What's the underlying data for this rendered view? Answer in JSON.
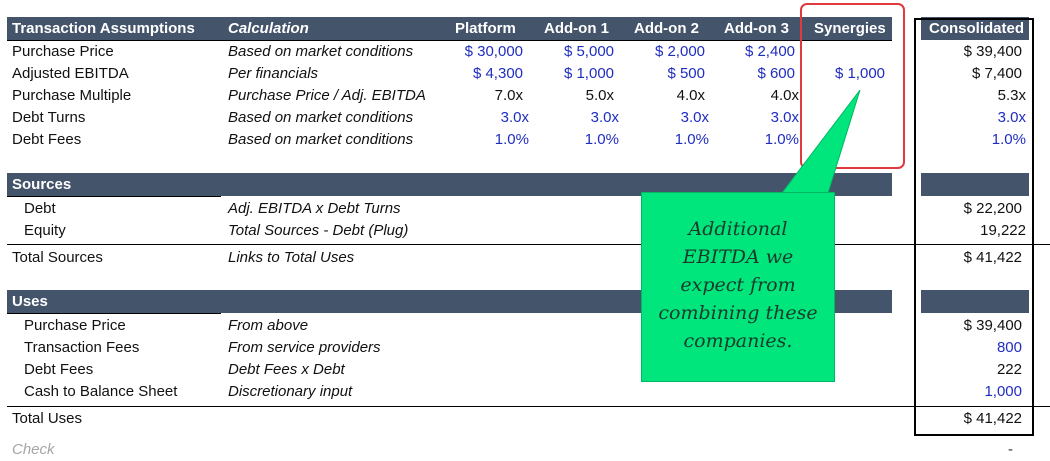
{
  "assumptions": {
    "header": {
      "section": "Transaction Assumptions",
      "calc": "Calculation",
      "platform": "Platform",
      "addon1": "Add-on 1",
      "addon2": "Add-on 2",
      "addon3": "Add-on 3",
      "synergies": "Synergies",
      "consolidated": "Consolidated"
    },
    "rows": [
      {
        "label": "Purchase Price",
        "calc": "Based on market conditions",
        "platform": "$ 30,000",
        "addon1": "$ 5,000",
        "addon2": "$ 2,000",
        "addon3": "$ 2,400",
        "synergies": "",
        "consolidated": "$ 39,400"
      },
      {
        "label": "Adjusted EBITDA",
        "calc": "Per financials",
        "platform": "$ 4,300",
        "addon1": "$ 1,000",
        "addon2": "$ 500",
        "addon3": "$ 600",
        "synergies": "$ 1,000",
        "consolidated": "$ 7,400"
      },
      {
        "label": "Purchase Multiple",
        "calc": "Purchase Price / Adj. EBITDA",
        "platform": "7.0x",
        "addon1": "5.0x",
        "addon2": "4.0x",
        "addon3": "4.0x",
        "synergies": "",
        "consolidated": "5.3x"
      },
      {
        "label": "Debt Turns",
        "calc": "Based on market conditions",
        "platform": "3.0x",
        "addon1": "3.0x",
        "addon2": "3.0x",
        "addon3": "3.0x",
        "synergies": "",
        "consolidated": "3.0x"
      },
      {
        "label": "Debt Fees",
        "calc": "Based on market conditions",
        "platform": "1.0%",
        "addon1": "1.0%",
        "addon2": "1.0%",
        "addon3": "1.0%",
        "synergies": "",
        "consolidated": "1.0%"
      }
    ]
  },
  "sources": {
    "header": "Sources",
    "rows": [
      {
        "label": "Debt",
        "calc": "Adj. EBITDA x Debt Turns",
        "consolidated": "$ 22,200"
      },
      {
        "label": "Equity",
        "calc": "Total Sources - Debt (Plug)",
        "consolidated": "19,222"
      }
    ],
    "total": {
      "label": "Total Sources",
      "calc": "Links to Total Uses",
      "consolidated": "$ 41,422"
    }
  },
  "uses": {
    "header": "Uses",
    "rows": [
      {
        "label": "Purchase Price",
        "calc": "From above",
        "consolidated": "$ 39,400"
      },
      {
        "label": "Transaction Fees",
        "calc": "From service providers",
        "consolidated": "800"
      },
      {
        "label": "Debt Fees",
        "calc": "Debt Fees x Debt",
        "consolidated": "222"
      },
      {
        "label": "Cash to Balance Sheet",
        "calc": "Discretionary input",
        "consolidated": "1,000"
      }
    ],
    "total": {
      "label": "Total Uses",
      "calc": "",
      "consolidated": "$ 41,422"
    }
  },
  "check": {
    "label": "Check",
    "value": "-"
  },
  "callout": {
    "lines": [
      "Additional",
      "EBITDA we",
      "expect from",
      "combining these",
      "companies."
    ]
  },
  "colors": {
    "header_bg": "#44546a",
    "input_blue": "#1f2dbf",
    "highlight_red": "#e0393e",
    "callout_green": "#00e57c"
  }
}
